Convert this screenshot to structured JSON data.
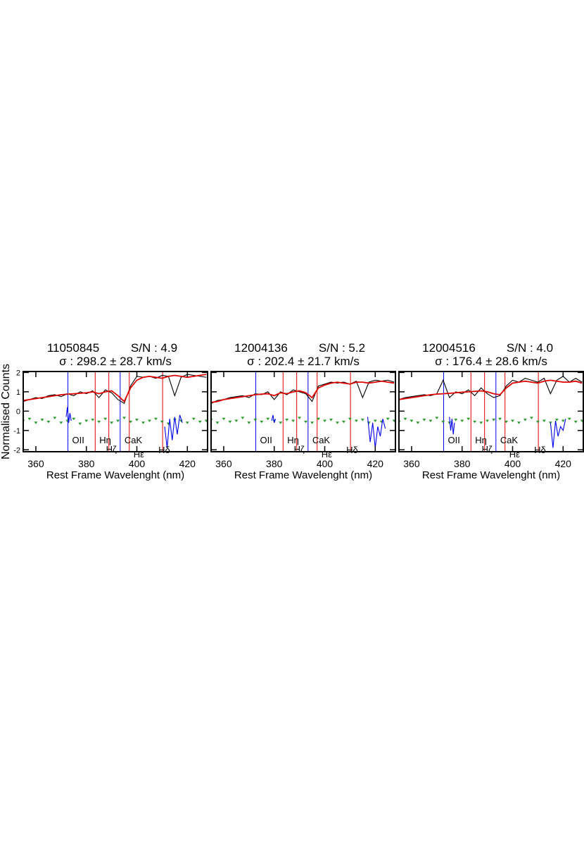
{
  "chart_data": [
    {
      "type": "line",
      "title": "11050845",
      "sn_label": "S/N : 4.9",
      "sigma_label": "σ :  298.2 ± 28.7 km/s",
      "x_label": "Rest Frame Wavelenght (nm)",
      "y_label": "Normalised Counts",
      "xlim": [
        355,
        428
      ],
      "ylim": [
        -2.1,
        2.05
      ],
      "xticks": [
        360,
        380,
        400,
        420
      ],
      "yticks": [
        -2,
        -1,
        0,
        1,
        2
      ],
      "x": [
        355,
        357.5,
        360,
        362.5,
        365,
        367.5,
        370,
        372.5,
        375,
        377.5,
        380,
        382.5,
        385,
        387.5,
        390,
        392.5,
        395,
        397.5,
        400,
        402.5,
        405,
        407.5,
        410,
        412.5,
        415,
        417.5,
        420,
        422.5,
        425,
        427.5
      ],
      "series": [
        {
          "color": "#000000",
          "values": [
            0.5,
            0.6,
            0.7,
            0.65,
            0.8,
            0.85,
            0.75,
            0.9,
            0.8,
            1.0,
            0.9,
            1.05,
            0.7,
            1.1,
            0.95,
            0.6,
            0.4,
            1.3,
            1.8,
            1.75,
            1.8,
            1.7,
            1.85,
            1.8,
            0.8,
            1.75,
            1.9,
            1.85,
            1.8,
            1.75
          ]
        },
        {
          "color": "#e00000",
          "values": [
            0.55,
            0.6,
            0.65,
            0.7,
            0.75,
            0.8,
            0.85,
            0.88,
            0.9,
            0.92,
            0.95,
            1.0,
            0.9,
            1.0,
            1.05,
            0.8,
            0.5,
            1.2,
            1.6,
            1.75,
            1.8,
            1.75,
            1.7,
            1.8,
            1.85,
            1.8,
            1.75,
            1.8,
            1.85,
            1.9
          ]
        },
        {
          "color": "#2a9a2a",
          "marker": true,
          "values": [
            -0.5,
            -0.4,
            -0.6,
            -0.45,
            -0.55,
            -0.35,
            -0.6,
            -0.5,
            -0.4,
            -0.65,
            -0.5,
            -0.45,
            -0.55,
            -0.4,
            -0.6,
            -0.5,
            -0.35,
            -0.55,
            -0.45,
            -0.6,
            -0.5,
            -0.4,
            -0.55,
            -0.65,
            -0.45,
            -0.5,
            -0.6,
            -0.4,
            -0.55,
            -0.5
          ]
        },
        {
          "color": "#0000ee",
          "x": [
            372,
            372.5,
            373,
            373.5,
            374,
            392,
            411,
            412,
            413,
            414,
            415,
            416,
            417,
            418
          ],
          "values": [
            -0.3,
            0.2,
            -0.6,
            -0.1,
            -0.5,
            null,
            -0.8,
            -1.9,
            -0.4,
            -1.5,
            -0.3,
            -1.2,
            -0.2,
            -0.6
          ]
        }
      ],
      "lines": [
        {
          "label": "OII",
          "x": 372.7,
          "color": "#0000ee"
        },
        {
          "label": "Hη",
          "x": 383.5,
          "color": "#e00000"
        },
        {
          "label": "Hζ",
          "x": 388.9,
          "color": "#e00000"
        },
        {
          "label": "CaK",
          "x": 393.4,
          "color": "#0000ee"
        },
        {
          "label": "Hε",
          "x": 397.0,
          "color": "#e00000"
        },
        {
          "label": "Hδ",
          "x": 410.2,
          "color": "#e00000"
        }
      ]
    },
    {
      "type": "line",
      "title": "12004136",
      "sn_label": "S/N : 5.2",
      "sigma_label": "σ :  202.4 ± 21.7 km/s",
      "x_label": "Rest Frame Wavelenght (nm)",
      "xlim": [
        355,
        428
      ],
      "ylim": [
        -2.1,
        2.05
      ],
      "xticks": [
        360,
        380,
        400,
        420
      ],
      "x": [
        355,
        357.5,
        360,
        362.5,
        365,
        367.5,
        370,
        372.5,
        375,
        377.5,
        380,
        382.5,
        385,
        387.5,
        390,
        392.5,
        395,
        397.5,
        400,
        402.5,
        405,
        407.5,
        410,
        412.5,
        415,
        417.5,
        420,
        422.5,
        425,
        427.5
      ],
      "series": [
        {
          "color": "#000000",
          "values": [
            0.4,
            0.55,
            0.6,
            0.7,
            0.75,
            0.8,
            0.7,
            0.9,
            0.85,
            1.0,
            0.6,
            1.0,
            0.85,
            1.1,
            1.0,
            0.9,
            0.5,
            1.3,
            1.4,
            1.5,
            1.45,
            1.5,
            1.4,
            1.55,
            0.7,
            1.5,
            1.6,
            1.55,
            1.6,
            1.5
          ]
        },
        {
          "color": "#e00000",
          "values": [
            0.45,
            0.5,
            0.6,
            0.65,
            0.7,
            0.75,
            0.8,
            0.85,
            0.88,
            0.9,
            0.8,
            0.95,
            0.9,
            1.0,
            1.05,
            0.95,
            0.7,
            1.2,
            1.35,
            1.45,
            1.5,
            1.45,
            1.4,
            1.5,
            1.5,
            1.45,
            1.5,
            1.55,
            1.5,
            1.45
          ]
        },
        {
          "color": "#2a9a2a",
          "marker": true,
          "values": [
            -0.45,
            -0.6,
            -0.4,
            -0.55,
            -0.5,
            -0.35,
            -0.6,
            -0.45,
            -0.55,
            -0.4,
            -0.5,
            -0.6,
            -0.45,
            -0.5,
            -0.35,
            -0.55,
            -0.6,
            -0.4,
            -0.5,
            -0.45,
            -0.6,
            -0.55,
            -0.4,
            -0.5,
            -0.45,
            -0.6,
            -0.5,
            -0.55,
            -0.4,
            -0.5
          ]
        },
        {
          "color": "#0000ee",
          "x": [
            379,
            379.5,
            380,
            380.5,
            398,
            417,
            418,
            419,
            420,
            421,
            422,
            423,
            424
          ],
          "values": [
            -0.5,
            -0.2,
            -0.6,
            -0.4,
            null,
            -0.3,
            -1.6,
            -0.6,
            -1.9,
            -0.8,
            -1.3,
            -0.4,
            -0.9
          ]
        }
      ],
      "lines": [
        {
          "label": "OII",
          "x": 372.7,
          "color": "#0000ee"
        },
        {
          "label": "Hη",
          "x": 383.5,
          "color": "#e00000"
        },
        {
          "label": "Hζ",
          "x": 388.9,
          "color": "#e00000"
        },
        {
          "label": "CaK",
          "x": 393.4,
          "color": "#0000ee"
        },
        {
          "label": "Hε",
          "x": 397.0,
          "color": "#e00000"
        },
        {
          "label": "Hδ",
          "x": 410.2,
          "color": "#e00000"
        }
      ]
    },
    {
      "type": "line",
      "title": "12004516",
      "sn_label": "S/N : 4.0",
      "sigma_label": "σ :  176.4 ± 28.6 km/s",
      "x_label": "Rest Frame Wavelenght (nm)",
      "xlim": [
        355,
        428
      ],
      "ylim": [
        -2.1,
        2.05
      ],
      "xticks": [
        360,
        380,
        400,
        420
      ],
      "x": [
        355,
        357.5,
        360,
        362.5,
        365,
        367.5,
        370,
        372.5,
        375,
        377.5,
        380,
        382.5,
        385,
        387.5,
        390,
        392.5,
        395,
        397.5,
        400,
        402.5,
        405,
        407.5,
        410,
        412.5,
        415,
        417.5,
        420,
        422.5,
        425,
        427.5
      ],
      "series": [
        {
          "color": "#000000",
          "values": [
            0.6,
            0.7,
            0.75,
            0.8,
            0.85,
            0.8,
            0.9,
            1.6,
            0.7,
            1.0,
            0.9,
            1.1,
            0.8,
            1.2,
            0.9,
            0.7,
            0.8,
            1.3,
            1.6,
            1.5,
            1.7,
            1.6,
            1.5,
            1.7,
            0.9,
            1.6,
            1.8,
            1.5,
            1.7,
            1.5
          ]
        },
        {
          "color": "#e00000",
          "values": [
            0.6,
            0.65,
            0.7,
            0.75,
            0.8,
            0.85,
            0.88,
            0.9,
            0.92,
            0.95,
            0.98,
            1.0,
            1.02,
            1.05,
            1.0,
            0.9,
            0.85,
            1.2,
            1.45,
            1.5,
            1.55,
            1.5,
            1.45,
            1.55,
            1.6,
            1.55,
            1.5,
            1.5,
            1.55,
            1.45
          ]
        },
        {
          "color": "#2a9a2a",
          "marker": true,
          "values": [
            -0.55,
            -0.4,
            -0.5,
            -0.6,
            -0.45,
            -0.5,
            -0.35,
            -0.55,
            -0.6,
            -0.45,
            -0.5,
            -0.4,
            -0.55,
            -0.6,
            -0.5,
            -0.45,
            -0.4,
            -0.55,
            -0.5,
            -0.6,
            -0.45,
            -0.35,
            -0.55,
            -0.5,
            -0.6,
            -0.45,
            -0.5,
            -0.4,
            -0.55,
            -0.5
          ]
        },
        {
          "color": "#0000ee",
          "x": [
            375,
            375.5,
            376,
            376.5,
            377,
            398,
            415,
            416,
            417,
            418,
            419,
            420,
            421
          ],
          "values": [
            -0.3,
            -1.0,
            -0.4,
            -1.2,
            -0.6,
            null,
            -0.6,
            -1.9,
            -0.5,
            -1.3,
            -0.8,
            -1.0,
            -0.4
          ]
        }
      ],
      "lines": [
        {
          "label": "OII",
          "x": 372.7,
          "color": "#0000ee"
        },
        {
          "label": "Hη",
          "x": 383.5,
          "color": "#e00000"
        },
        {
          "label": "Hζ",
          "x": 388.9,
          "color": "#e00000"
        },
        {
          "label": "CaK",
          "x": 393.4,
          "color": "#0000ee"
        },
        {
          "label": "Hε",
          "x": 397.0,
          "color": "#e00000"
        },
        {
          "label": "Hδ",
          "x": 410.2,
          "color": "#e00000"
        }
      ]
    }
  ]
}
